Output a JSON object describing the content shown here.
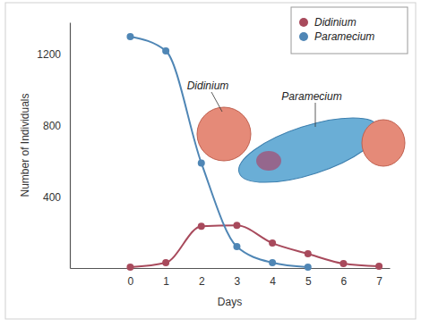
{
  "chart_data": {
    "type": "line",
    "x_label": "Days",
    "y_label": "Number of Individuals",
    "x": [
      0,
      1,
      2,
      3,
      4,
      5,
      6,
      7
    ],
    "series": [
      {
        "name": "Didinium",
        "color": "#a84a5c",
        "marker": "circle",
        "values": [
          5,
          30,
          235,
          240,
          140,
          80,
          25,
          10
        ]
      },
      {
        "name": "Paramecium",
        "color": "#4f86b5",
        "marker": "circle",
        "values": [
          1300,
          1220,
          590,
          120,
          30,
          5,
          null,
          null
        ]
      }
    ],
    "xlim": [
      -1.7,
      7.3
    ],
    "xticks": [
      0,
      1,
      2,
      3,
      4,
      5,
      6,
      7
    ],
    "ylim": [
      0,
      1380
    ],
    "yticks": [
      400,
      800,
      1200
    ],
    "grid": false,
    "legend": "upper right",
    "annotations": [
      "Didinium",
      "Paramecium"
    ]
  }
}
